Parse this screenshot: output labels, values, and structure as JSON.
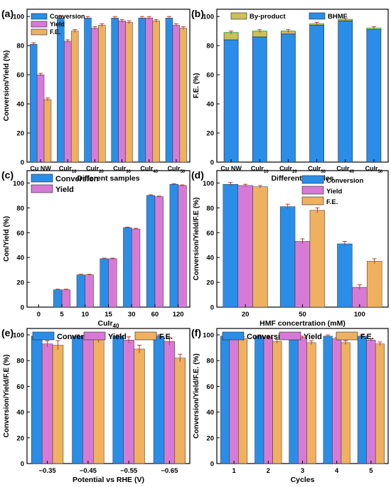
{
  "colors": {
    "blue": "#2a8ee8",
    "pink": "#d77ad6",
    "orange": "#efb15f",
    "olive": "#c9c15a",
    "green": "#5cbf6a",
    "error": "#c0392b",
    "axis": "#000000"
  },
  "chart_data": [
    {
      "panel_label": "(a)",
      "type": "bar",
      "categories": [
        "Cu NW",
        "CuIr10",
        "CuIr20",
        "CuIr30",
        "CuIr40",
        "CuIr50"
      ],
      "category_display": [
        {
          "main": "Cu NW",
          "sub": ""
        },
        {
          "main": "CuIr",
          "sub": "10"
        },
        {
          "main": "CuIr",
          "sub": "20"
        },
        {
          "main": "CuIr",
          "sub": "30"
        },
        {
          "main": "CuIr",
          "sub": "40"
        },
        {
          "main": "CuIr",
          "sub": "50"
        }
      ],
      "series": [
        {
          "name": "Conversion",
          "color_key": "blue",
          "values": [
            81,
            99,
            99,
            99,
            99,
            99
          ],
          "errors": [
            1,
            1,
            1,
            1,
            1,
            1
          ]
        },
        {
          "name": "Yield",
          "color_key": "pink",
          "values": [
            60,
            83,
            92,
            97,
            99,
            94
          ],
          "errors": [
            1,
            1,
            1,
            1,
            1,
            1
          ]
        },
        {
          "name": "F.E.",
          "color_key": "orange",
          "values": [
            43,
            90,
            94,
            96,
            97,
            92
          ],
          "errors": [
            1,
            1,
            1,
            1,
            1,
            1
          ]
        }
      ],
      "xlabel": "Different samples",
      "ylabel": "Conversion/Yield (%)",
      "ylim": [
        0,
        105
      ],
      "yticks": [
        0,
        20,
        40,
        60,
        80,
        100
      ],
      "legend_position": "top-left"
    },
    {
      "panel_label": "(b)",
      "type": "bar",
      "stacked": true,
      "categories": [
        "Cu NW",
        "CuIr10",
        "CuIr20",
        "CuIr30",
        "CuIr40",
        "CuIr50"
      ],
      "category_display": [
        {
          "main": "Cu NW",
          "sub": ""
        },
        {
          "main": "CuIr",
          "sub": "10"
        },
        {
          "main": "CuIr",
          "sub": "20"
        },
        {
          "main": "CuIr",
          "sub": "30"
        },
        {
          "main": "CuIr",
          "sub": "40"
        },
        {
          "main": "CuIr",
          "sub": "50"
        }
      ],
      "series": [
        {
          "name": "BHMF",
          "color_key": "blue",
          "values": [
            84,
            86,
            88,
            94,
            97,
            91
          ]
        },
        {
          "name": "By-product",
          "color_key": "olive",
          "values": [
            5,
            4,
            2,
            1,
            1,
            1
          ]
        }
      ],
      "errors": [
        1,
        1,
        1,
        1,
        1,
        1
      ],
      "xlabel": "Different samples",
      "ylabel": "F.E. (%)",
      "ylim": [
        0,
        105
      ],
      "yticks": [
        0,
        20,
        40,
        60,
        80,
        100
      ],
      "legend_position": "top"
    },
    {
      "panel_label": "(c)",
      "type": "bar",
      "categories": [
        "0",
        "5",
        "10",
        "15",
        "30",
        "60",
        "120"
      ],
      "series": [
        {
          "name": "Conversion",
          "color_key": "blue",
          "values": [
            0,
            14,
            26,
            39,
            64,
            90,
            99
          ],
          "errors": [
            0,
            0.5,
            0.5,
            0.5,
            0.5,
            0.5,
            0.5
          ]
        },
        {
          "name": "Yield",
          "color_key": "pink",
          "values": [
            0,
            14,
            26,
            39,
            63,
            89,
            98
          ],
          "errors": [
            0,
            0.5,
            0.5,
            0.5,
            0.5,
            0.5,
            0.5
          ]
        }
      ],
      "xlabel_main": "CuIr",
      "xlabel_sub": "40",
      "ylabel": "Con/Yield (%)",
      "ylim": [
        0,
        110
      ],
      "yticks": [
        0,
        20,
        40,
        60,
        80,
        100
      ],
      "legend_position": "top-left"
    },
    {
      "panel_label": "(d)",
      "type": "bar",
      "categories": [
        "20",
        "50",
        "100"
      ],
      "series": [
        {
          "name": "Conversion",
          "color_key": "blue",
          "values": [
            99,
            81,
            51
          ],
          "errors": [
            1.5,
            2,
            2
          ]
        },
        {
          "name": "Yield",
          "color_key": "pink",
          "values": [
            98,
            53,
            16
          ],
          "errors": [
            1,
            2,
            2
          ]
        },
        {
          "name": "F.E.",
          "color_key": "orange",
          "values": [
            97,
            78,
            37
          ],
          "errors": [
            1,
            2,
            2
          ]
        }
      ],
      "xlabel": "HMF concertration (mM)",
      "ylabel": "Conversion/Yield/F.E (%)",
      "ylim": [
        0,
        110
      ],
      "yticks": [
        0,
        20,
        40,
        60,
        80,
        100
      ],
      "legend_position": "top-right"
    },
    {
      "panel_label": "(e)",
      "type": "bar",
      "categories": [
        "-0.35",
        "-0.45",
        "-0.55",
        "-0.65"
      ],
      "series": [
        {
          "name": "Conversion",
          "color_key": "blue",
          "values": [
            99,
            99,
            99,
            99
          ],
          "errors": [
            1,
            1,
            1,
            1
          ]
        },
        {
          "name": "Yield",
          "color_key": "pink",
          "values": [
            93,
            99,
            96,
            95
          ],
          "errors": [
            2.5,
            2.5,
            2.5,
            3
          ]
        },
        {
          "name": "F.E.",
          "color_key": "orange",
          "values": [
            92,
            97,
            89,
            82
          ],
          "errors": [
            3.5,
            3,
            3,
            3
          ]
        }
      ],
      "xlabel": "Potential vs RHE (V)",
      "ylabel": "Conversion/Yield/F.E (%)",
      "ylim": [
        0,
        105
      ],
      "yticks": [
        0,
        20,
        40,
        60,
        80,
        100
      ],
      "legend_position": "top"
    },
    {
      "panel_label": "(f)",
      "type": "bar",
      "categories": [
        "1",
        "2",
        "3",
        "4",
        "5"
      ],
      "series": [
        {
          "name": "Conversion",
          "color_key": "blue",
          "values": [
            99,
            99,
            99,
            99,
            99
          ],
          "errors": [
            1,
            1,
            1,
            1,
            1
          ]
        },
        {
          "name": "Yield",
          "color_key": "pink",
          "values": [
            99,
            98,
            98,
            97,
            96
          ],
          "errors": [
            1,
            1,
            1,
            1,
            1
          ]
        },
        {
          "name": "F.E.",
          "color_key": "orange",
          "values": [
            97,
            95,
            94,
            94,
            93
          ],
          "errors": [
            1.5,
            1.5,
            1.5,
            1.5,
            1.5
          ]
        }
      ],
      "xlabel": "Cycles",
      "ylabel": "Conversion/Yield/F.E. (%)",
      "ylim": [
        0,
        105
      ],
      "yticks": [
        0,
        20,
        40,
        60,
        80,
        100
      ],
      "legend_position": "top"
    }
  ]
}
